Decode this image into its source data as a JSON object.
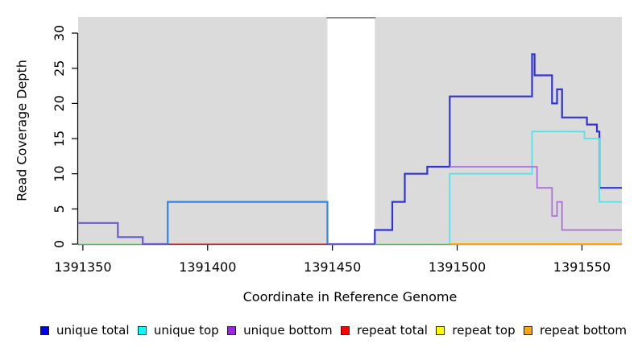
{
  "figure": {
    "xlabel": "Coordinate in Reference Genome",
    "ylabel": "Read Coverage Depth"
  },
  "chart_data": {
    "type": "line",
    "subtype": "step-coverage-plot",
    "title": "",
    "xlabel": "Coordinate in Reference Genome",
    "ylabel": "Read Coverage Depth",
    "x_ticks": [
      1391350,
      1391400,
      1391450,
      1391500,
      1391550
    ],
    "y_ticks": [
      0,
      5,
      10,
      15,
      20,
      25,
      30
    ],
    "xlim": [
      1391348.1,
      1391566
    ],
    "ylim": [
      0,
      32.3
    ],
    "grid": false,
    "plot_bg": "#dbdbdb",
    "axis_color": "#000000",
    "masked_region": {
      "x0": 1391448,
      "x1": 1391467,
      "fill": "#ffffff",
      "top_edge_color": "#8c8c8c"
    },
    "legend_position": "bottom",
    "legend": [
      {
        "label": "unique total",
        "color": "#0000ee"
      },
      {
        "label": "unique top",
        "color": "#00ffff"
      },
      {
        "label": "unique bottom",
        "color": "#a020f0"
      },
      {
        "label": "repeat total",
        "color": "#ff0000"
      },
      {
        "label": "repeat top",
        "color": "#ffff00"
      },
      {
        "label": "repeat bottom",
        "color": "#ffa500"
      }
    ],
    "series": [
      {
        "name": "zero-baseline-left",
        "color": "#93e49a",
        "width": 1.6,
        "points": [
          [
            1391348.2,
            0
          ],
          [
            1391374,
            0
          ]
        ]
      },
      {
        "name": "repeat-total-baseline",
        "color": "#e04848",
        "width": 1.6,
        "points": [
          [
            1391374,
            0
          ],
          [
            1391448,
            0
          ]
        ]
      },
      {
        "name": "unique-total-left-steps",
        "color": "#6a5acd",
        "width": 2.2,
        "points": [
          [
            1391348.2,
            3
          ],
          [
            1391364,
            3
          ],
          [
            1391364,
            1
          ],
          [
            1391374,
            1
          ],
          [
            1391374,
            0
          ],
          [
            1391384,
            0
          ]
        ]
      },
      {
        "name": "unique-total-box",
        "color": "#2f85f0",
        "width": 2.2,
        "points": [
          [
            1391384,
            0
          ],
          [
            1391384,
            6
          ],
          [
            1391448,
            6
          ],
          [
            1391448,
            0
          ]
        ]
      },
      {
        "name": "gap-zero-line",
        "color": "#6a5acd",
        "width": 2.2,
        "points": [
          [
            1391448,
            0
          ],
          [
            1391467,
            0
          ]
        ]
      },
      {
        "name": "zero-baseline-mid",
        "color": "#93e49a",
        "width": 1.6,
        "points": [
          [
            1391467,
            0
          ],
          [
            1391497,
            0
          ]
        ]
      },
      {
        "name": "unique-total-right-steps",
        "color": "#3232d8",
        "width": 2.2,
        "points": [
          [
            1391467,
            0
          ],
          [
            1391467,
            2
          ],
          [
            1391474,
            2
          ],
          [
            1391474,
            6
          ],
          [
            1391479,
            6
          ],
          [
            1391479,
            10
          ],
          [
            1391488,
            10
          ],
          [
            1391488,
            11
          ],
          [
            1391497,
            11
          ],
          [
            1391497,
            21
          ],
          [
            1391530,
            21
          ],
          [
            1391530,
            27
          ],
          [
            1391531,
            27
          ],
          [
            1391531,
            24
          ],
          [
            1391538,
            24
          ],
          [
            1391538,
            20
          ],
          [
            1391540,
            20
          ],
          [
            1391540,
            22
          ],
          [
            1391542,
            22
          ],
          [
            1391542,
            18
          ],
          [
            1391552,
            18
          ],
          [
            1391552,
            17
          ],
          [
            1391556,
            17
          ],
          [
            1391556,
            16
          ],
          [
            1391557,
            16
          ],
          [
            1391557,
            8
          ],
          [
            1391566,
            8
          ]
        ]
      },
      {
        "name": "unique-top-steps",
        "color": "#55e2e8",
        "width": 1.8,
        "points": [
          [
            1391497,
            0
          ],
          [
            1391497,
            10
          ],
          [
            1391530,
            10
          ],
          [
            1391530,
            16
          ],
          [
            1391551,
            16
          ],
          [
            1391551,
            15
          ],
          [
            1391557,
            15
          ],
          [
            1391557,
            6
          ],
          [
            1391566,
            6
          ]
        ]
      },
      {
        "name": "unique-bottom-steps",
        "color": "#ad6edd",
        "width": 1.8,
        "points": [
          [
            1391497,
            11
          ],
          [
            1391532,
            11
          ],
          [
            1391532,
            8
          ],
          [
            1391538,
            8
          ],
          [
            1391538,
            4
          ],
          [
            1391540,
            4
          ],
          [
            1391540,
            6
          ],
          [
            1391542,
            6
          ],
          [
            1391542,
            2
          ],
          [
            1391566,
            2
          ]
        ]
      },
      {
        "name": "repeat-bottom-baseline",
        "color": "#ffa500",
        "width": 2.0,
        "points": [
          [
            1391497,
            0
          ],
          [
            1391566,
            0
          ]
        ]
      }
    ]
  }
}
